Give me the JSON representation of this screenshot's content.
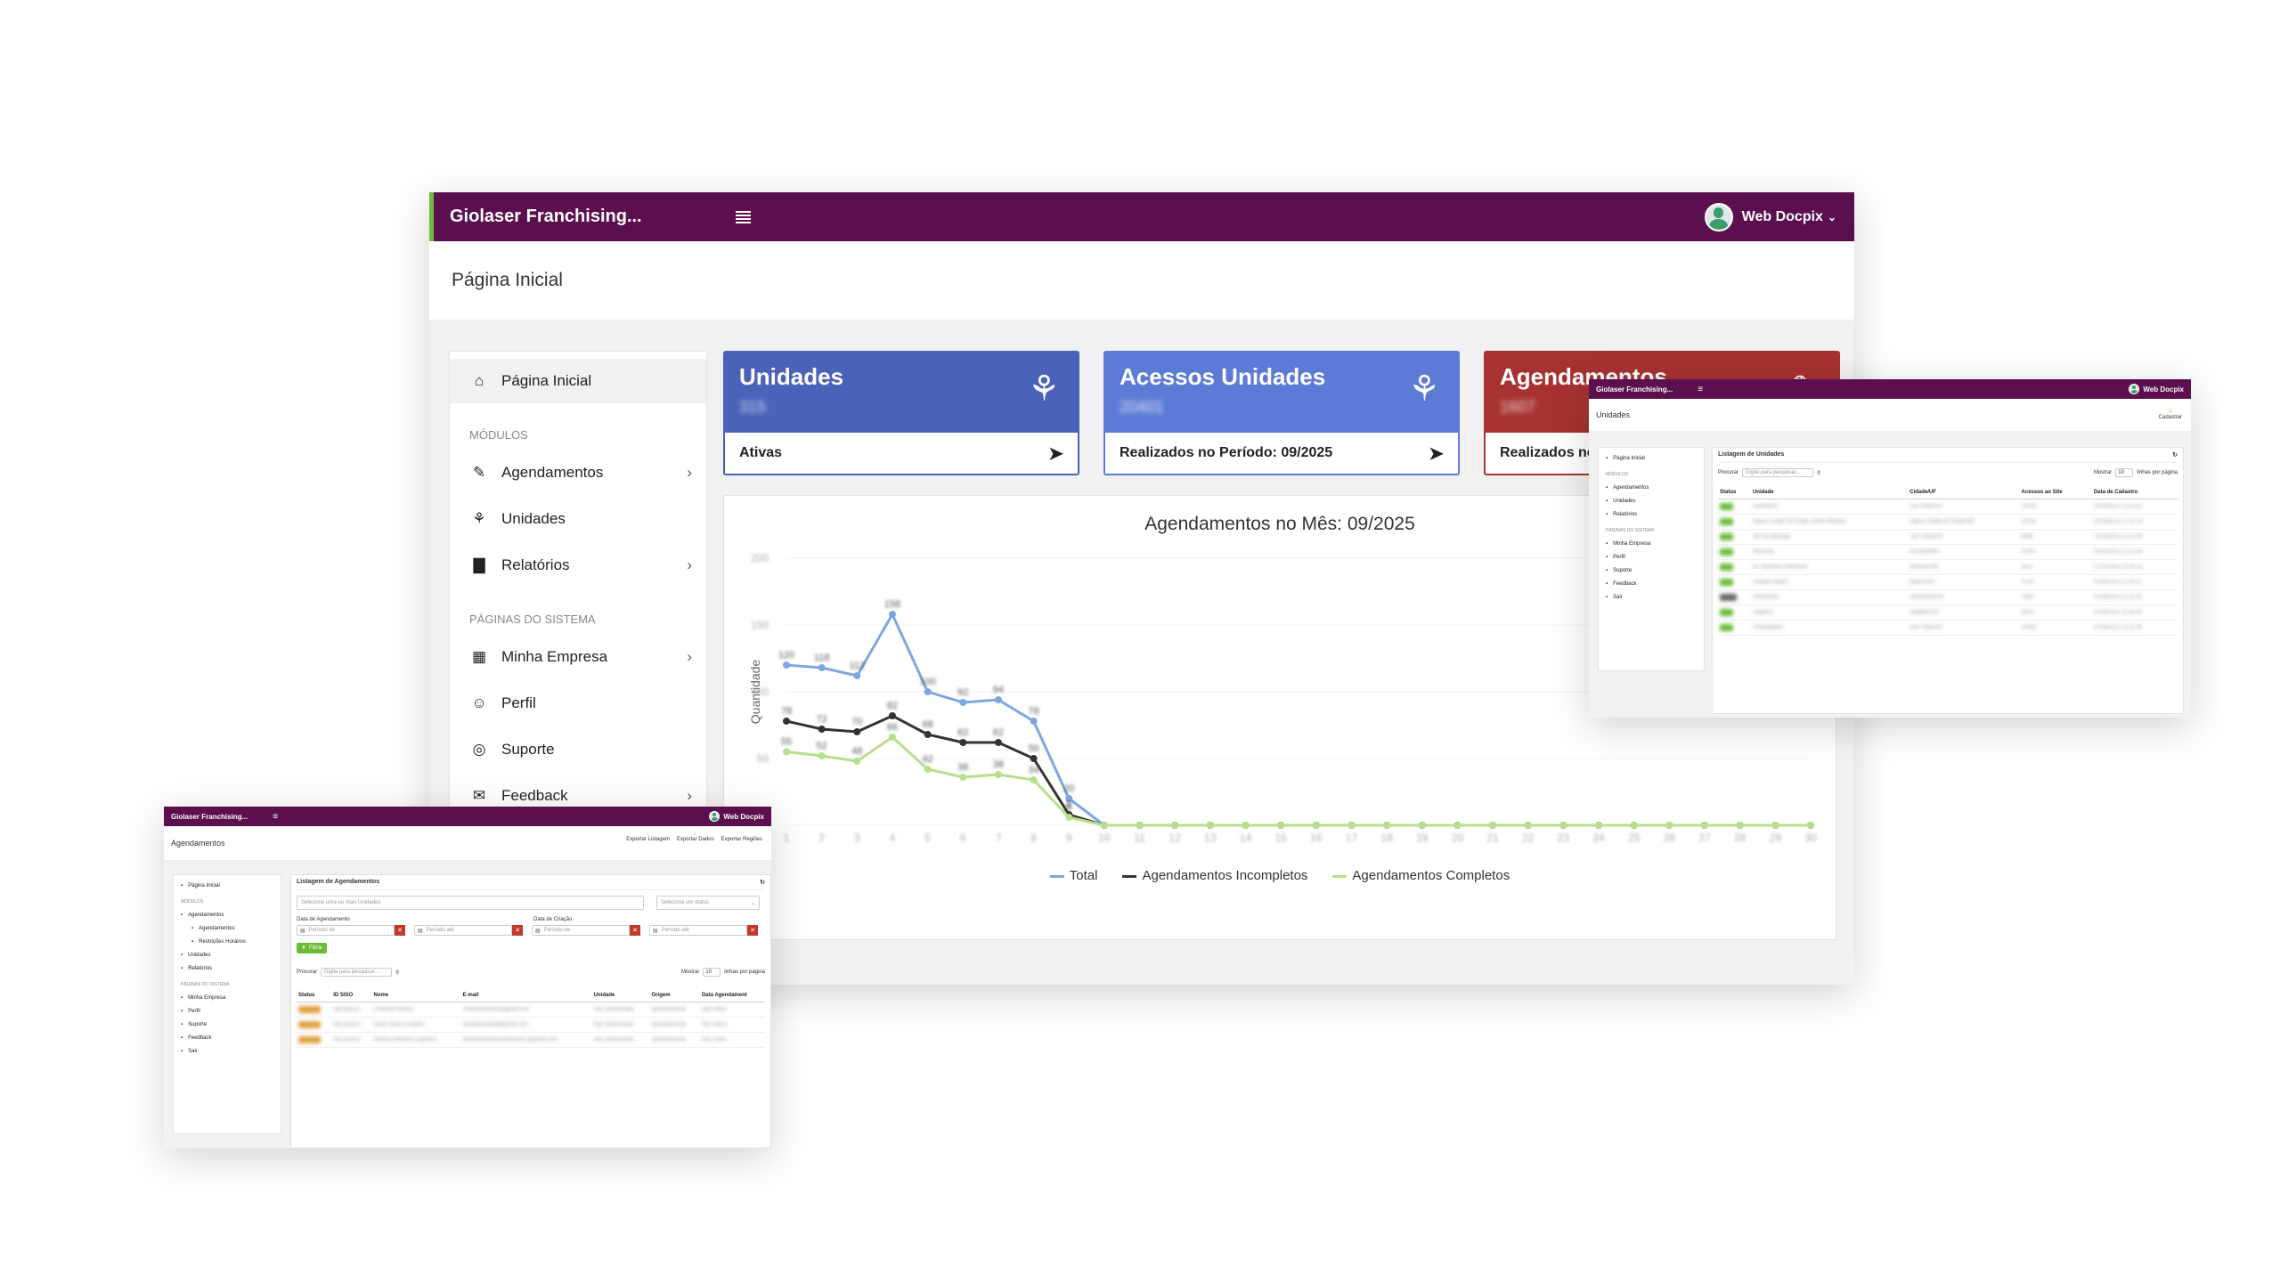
{
  "main": {
    "topbar": {
      "brand": "Giolaser Franchising...",
      "user": "Web Docpix"
    },
    "page_title": "Página Inicial",
    "sidebar": {
      "items_top": [
        {
          "label": "Página Inicial",
          "icon": "home-icon",
          "chevron": false
        }
      ],
      "section_modules": "MÓDULOS",
      "modules": [
        {
          "label": "Agendamentos",
          "icon": "edit-icon",
          "chevron": true
        },
        {
          "label": "Unidades",
          "icon": "network-icon",
          "chevron": false
        },
        {
          "label": "Relatórios",
          "icon": "bar-chart-icon",
          "chevron": true
        }
      ],
      "section_system": "PÁGINAS DO SISTEMA",
      "system": [
        {
          "label": "Minha Empresa",
          "icon": "grid-icon",
          "chevron": true
        },
        {
          "label": "Perfil",
          "icon": "user-icon",
          "chevron": false
        },
        {
          "label": "Suporte",
          "icon": "lifebuoy-icon",
          "chevron": false
        },
        {
          "label": "Feedback",
          "icon": "comment-icon",
          "chevron": true
        }
      ]
    },
    "cards": [
      {
        "title": "Unidades",
        "value": "315",
        "footer": "Ativas",
        "color": "#4a62b8",
        "icon": "network-icon"
      },
      {
        "title": "Acessos Unidades",
        "value": "20401",
        "footer": "Realizados no Período: 09/2025",
        "color": "#5b7bd6",
        "icon": "network-icon"
      },
      {
        "title": "Agendamentos",
        "value": "1607",
        "footer": "Realizados no",
        "color": "#a83232",
        "icon": "edit-icon"
      }
    ],
    "chart_title": "Agendamentos no Mês: 09/2025",
    "chart_ylabel": "Quantidade",
    "legend": [
      {
        "label": "Total",
        "color": "#7ea6e0"
      },
      {
        "label": "Agendamentos Incompletos",
        "color": "#333333"
      },
      {
        "label": "Agendamentos Completos",
        "color": "#b7e08a"
      }
    ]
  },
  "chart_data": {
    "type": "line",
    "title": "Agendamentos no Mês: 09/2025",
    "ylabel": "Quantidade",
    "xlabel": "",
    "x": [
      1,
      2,
      3,
      4,
      5,
      6,
      7,
      8,
      9,
      10,
      11,
      12,
      13,
      14,
      15,
      16,
      17,
      18,
      19,
      20,
      21,
      22,
      23,
      24,
      25,
      26,
      27,
      28,
      29,
      30
    ],
    "ylim": [
      0,
      200
    ],
    "series": [
      {
        "name": "Total",
        "values": [
          120,
          118,
          112,
          158,
          100,
          92,
          94,
          78,
          20,
          0,
          0,
          0,
          0,
          0,
          0,
          0,
          0,
          0,
          0,
          0,
          0,
          0,
          0,
          0,
          0,
          0,
          0,
          0,
          0,
          0
        ]
      },
      {
        "name": "Agendamentos Incompletos",
        "values": [
          78,
          72,
          70,
          82,
          68,
          62,
          62,
          50,
          8,
          0,
          0,
          0,
          0,
          0,
          0,
          0,
          0,
          0,
          0,
          0,
          0,
          0,
          0,
          0,
          0,
          0,
          0,
          0,
          0,
          0
        ]
      },
      {
        "name": "Agendamentos Completos",
        "values": [
          55,
          52,
          48,
          66,
          42,
          36,
          38,
          34,
          6,
          0,
          0,
          0,
          0,
          0,
          0,
          0,
          0,
          0,
          0,
          0,
          0,
          0,
          0,
          0,
          0,
          0,
          0,
          0,
          0,
          0
        ]
      }
    ]
  },
  "overlay_unidades": {
    "brand": "Giolaser Franchising...",
    "user": "Web Docpix",
    "page_title": "Unidades",
    "action": "Cadastrar",
    "panel_title": "Listagem de Unidades",
    "search_label": "Procurar",
    "search_placeholder": "Digite para pesquisar...",
    "show_label": "Mostrar",
    "show_value": "10",
    "per_page_label": "linhas por página",
    "sidebar": [
      {
        "label": "Página Inicial",
        "type": "item"
      },
      {
        "label": "MÓDULOS",
        "type": "section"
      },
      {
        "label": "Agendamentos",
        "type": "item"
      },
      {
        "label": "Unidades",
        "type": "item"
      },
      {
        "label": "Relatórios",
        "type": "item"
      },
      {
        "label": "PÁGINAS DO SISTEMA",
        "type": "section"
      },
      {
        "label": "Minha Empresa",
        "type": "item"
      },
      {
        "label": "Perfil",
        "type": "item"
      },
      {
        "label": "Suporte",
        "type": "item"
      },
      {
        "label": "Feedback",
        "type": "item"
      },
      {
        "label": "Sair",
        "type": "item"
      }
    ],
    "columns": [
      "Status",
      "Unidade",
      "Cidade/UF",
      "Acessos ao Site",
      "Data de Cadastro"
    ],
    "rows": [
      {
        "status": "Ativo",
        "c1": "Aclimação",
        "c2": "São Paulo/SP",
        "c3": "10158",
        "c4": "01/08/2022 11:25:01"
      },
      {
        "status": "Ativo",
        "c1": "Águas Lindas De Goiás Jardim Brasília",
        "c2": "Águas Lindas de Goiás/GO",
        "c3": "11045",
        "c4": "01/08/2022 17:01:14"
      },
      {
        "status": "Ativo",
        "c1": "Alto da Ipiranga",
        "c2": "São Paulo/SP",
        "c3": "8899",
        "c4": "01/08/2022 11:25:09"
      },
      {
        "status": "Ativo",
        "c1": "Alvorada",
        "c2": "Alvorada/RS",
        "c3": "10487",
        "c4": "01/08/2022 11:25:06"
      },
      {
        "status": "Ativo",
        "c1": "Av. Barbosa Robertson",
        "c2": "Manaus/AM",
        "c3": "4257",
        "c4": "07/11/2022 10:25:15"
      },
      {
        "status": "Ativo",
        "c1": "Amador Bueno",
        "c2": "Barueri/SP",
        "c3": "3756",
        "c4": "01/08/2022 11:25:11"
      },
      {
        "status": "Inativo",
        "c1": "Americana",
        "c2": "Americana/SP",
        "c3": "7845",
        "c4": "01/08/2022 11:25:06"
      },
      {
        "status": "Ativo",
        "c1": "Angélica",
        "c2": "Angélica/SP",
        "c3": "6654",
        "c4": "01/08/2022 11:25:06"
      },
      {
        "status": "Ativo",
        "c1": "Anhangabaú",
        "c2": "São Paulo/SP",
        "c3": "10066",
        "c4": "01/08/2022 11:25:06"
      }
    ]
  },
  "overlay_agendamentos": {
    "brand": "Giolaser Franchising...",
    "user": "Web Docpix",
    "page_title": "Agendamentos",
    "actions": [
      "Exportar Listagem",
      "Exportar Dados",
      "Exportar Regiões"
    ],
    "panel_title": "Listagem de Agendamentos",
    "units_placeholder": "Selecione uma ou mais Unidades",
    "status_placeholder": "Selecione um status",
    "date_label_1": "Data de Agendamento",
    "date_label_2": "Data de Criação",
    "period_from": "Período de",
    "period_to": "Período até",
    "filter_btn": "Filtrar",
    "search_label": "Procurar",
    "search_placeholder": "Digite para pesquisar...",
    "show_label": "Mostrar",
    "show_value": "10",
    "per_page_label": "linhas por página",
    "sidebar": [
      {
        "label": "Página Inicial",
        "type": "item",
        "indent": false
      },
      {
        "label": "MÓDULOS",
        "type": "section",
        "indent": false
      },
      {
        "label": "Agendamentos",
        "type": "item",
        "indent": false
      },
      {
        "label": "Agendamentos",
        "type": "item",
        "indent": true
      },
      {
        "label": "Restrições Horários",
        "type": "item",
        "indent": true
      },
      {
        "label": "Unidades",
        "type": "item",
        "indent": false
      },
      {
        "label": "Relatórios",
        "type": "item",
        "indent": false
      },
      {
        "label": "PÁGINAS DO SISTEMA",
        "type": "section",
        "indent": false
      },
      {
        "label": "Minha Empresa",
        "type": "item",
        "indent": false
      },
      {
        "label": "Perfil",
        "type": "item",
        "indent": false
      },
      {
        "label": "Suporte",
        "type": "item",
        "indent": false
      },
      {
        "label": "Feedback",
        "type": "item",
        "indent": false
      },
      {
        "label": "Sair",
        "type": "item",
        "indent": false
      }
    ],
    "columns": [
      "Status",
      "ID SISO",
      "Nome",
      "E-mail",
      "Unidade",
      "Origem",
      "Data Agendament"
    ],
    "rows": [
      {
        "status": "Pendente",
        "c1": "Não possui",
        "c2": "Cristiane Martins",
        "c3": "cristianemartins@gmail.com",
        "c4": "Não selecionada",
        "c5": "Ig/Institucional",
        "c6": "Não seleci"
      },
      {
        "status": "Pendente",
        "c1": "Não possui",
        "c2": "Karla Santos Guedes",
        "c3": "karlaadriana98@gmail.com",
        "c4": "Não selecionada",
        "c5": "Ig/Institucional",
        "c6": "Não seleci"
      },
      {
        "status": "Pendente",
        "c1": "Não possui",
        "c2": "Adriana Medeiros Barbosa",
        "c3": "adrianamedeirosbarbosa97@gmail.com",
        "c4": "Não selecionada",
        "c5": "Ig/Institucional",
        "c6": "Não seleci"
      }
    ]
  }
}
